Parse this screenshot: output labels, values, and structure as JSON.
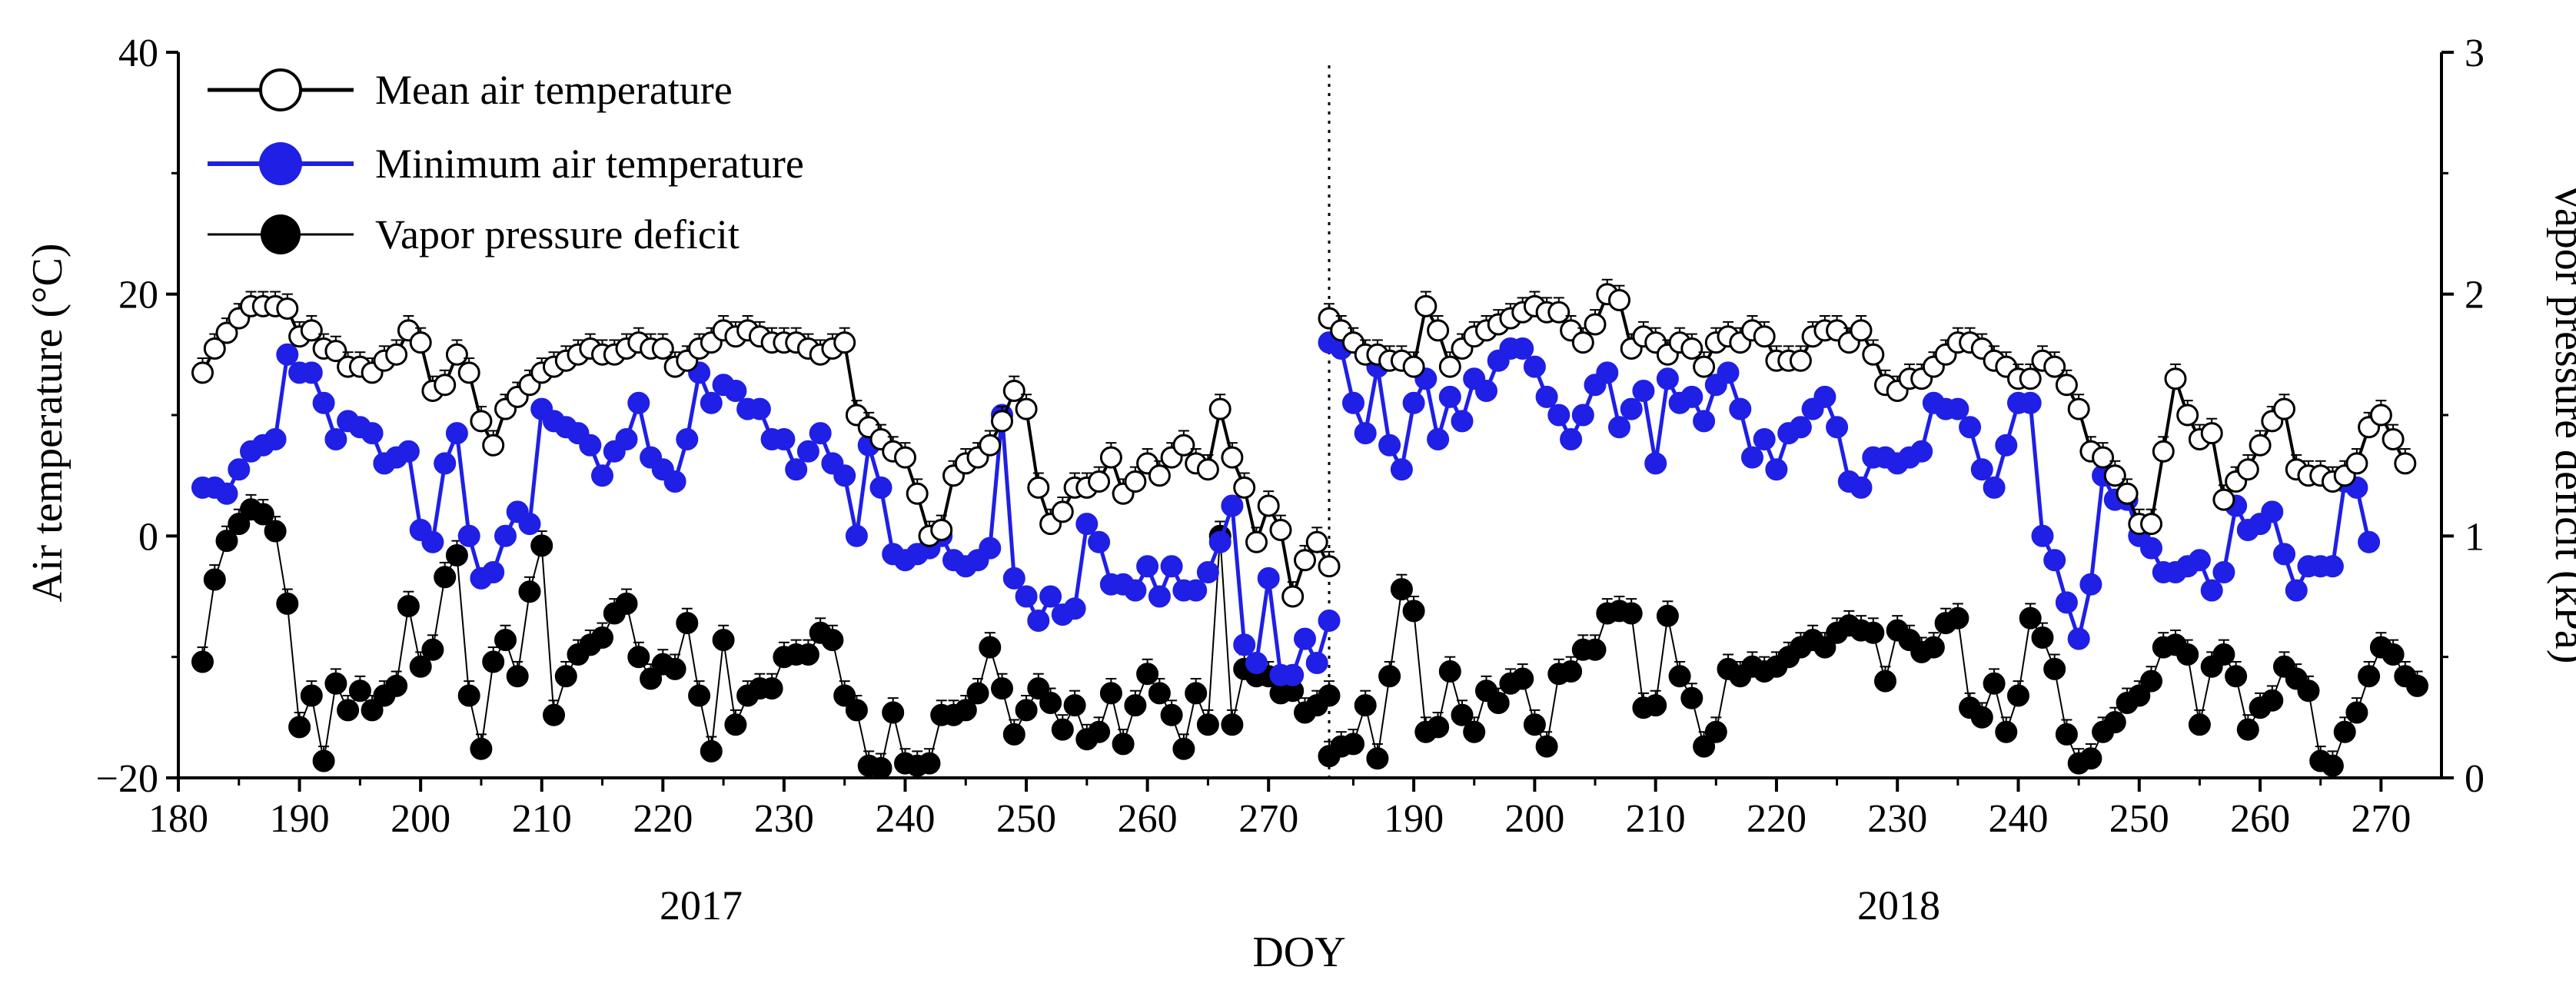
{
  "chart_data": {
    "type": "line",
    "title": "",
    "xlabel": "DOY",
    "ylabel": "Air temperature (°C)",
    "y2label": "Vapor pressure deficit (kPa)",
    "ylim": [
      -20,
      40
    ],
    "y2lim": [
      0,
      3
    ],
    "y_ticks": [
      "−20",
      "0",
      "20",
      "40"
    ],
    "y2_ticks": [
      "0",
      "1",
      "2",
      "3"
    ],
    "years": [
      "2017",
      "2018"
    ],
    "segments": [
      {
        "year": "2017",
        "doy_start": 180,
        "doy_end": 275,
        "x_ticks": [
          "180",
          "190",
          "200",
          "210",
          "220",
          "230",
          "240",
          "250",
          "260",
          "270"
        ]
      },
      {
        "year": "2018",
        "doy_start": 183,
        "doy_end": 275,
        "x_ticks": [
          "190",
          "200",
          "210",
          "220",
          "230",
          "240",
          "250",
          "260",
          "270"
        ]
      }
    ],
    "legend": [
      "Mean air temperature",
      "Minimum air temperature",
      "Vapor pressure deficit"
    ],
    "series": [
      {
        "name": "Mean air temperature",
        "axis": "left",
        "color": "#000000",
        "2017": {
          "doy_start": 182,
          "values": [
            13.5,
            15.5,
            16.8,
            18.0,
            19.0,
            19.0,
            19.0,
            18.8,
            16.5,
            17.0,
            15.5,
            15.3,
            14.0,
            14.0,
            13.5,
            14.5,
            15.0,
            17.0,
            16.0,
            12.0,
            12.5,
            15.0,
            13.5,
            9.5,
            7.5,
            10.5,
            11.5,
            12.5,
            13.5,
            14.0,
            14.5,
            15.0,
            15.5,
            15.0,
            15.0,
            15.5,
            16.0,
            15.5,
            15.5,
            14.0,
            14.5,
            15.5,
            16.0,
            17.0,
            16.5,
            17.0,
            16.5,
            16.0,
            16.0,
            16.0,
            15.5,
            15.0,
            15.5,
            16.0,
            10.0,
            9.0,
            8.0,
            7.0,
            6.5,
            3.5,
            0.0,
            0.5,
            5.0,
            6.0,
            6.5,
            7.5,
            9.5,
            12.0,
            10.5,
            4.0,
            1.0,
            2.0,
            4.0,
            4.0,
            4.5,
            6.5,
            3.5,
            4.5,
            6.0,
            5.0,
            6.5,
            7.5,
            6.0,
            5.5,
            10.5,
            6.5,
            4.0,
            -0.5,
            2.5,
            0.5,
            -5.0,
            -2.0,
            -0.5,
            -2.5
          ]
        },
        "2018": {
          "doy_start": 183,
          "values": [
            18.0,
            17.0,
            16.0,
            15.0,
            15.0,
            14.5,
            14.5,
            14.0,
            19.0,
            17.0,
            14.0,
            15.5,
            16.5,
            17.0,
            17.5,
            18.0,
            18.5,
            19.0,
            18.5,
            18.5,
            17.0,
            16.0,
            17.5,
            20.0,
            19.5,
            15.5,
            16.5,
            16.0,
            15.0,
            16.0,
            15.5,
            14.0,
            16.0,
            16.5,
            16.0,
            17.0,
            16.5,
            14.5,
            14.5,
            14.5,
            16.5,
            17.0,
            17.0,
            16.0,
            17.0,
            15.0,
            12.5,
            12.0,
            13.0,
            13.0,
            14.0,
            15.0,
            16.0,
            16.0,
            15.5,
            14.5,
            14.0,
            13.0,
            13.0,
            14.5,
            14.0,
            12.5,
            10.5,
            7.0,
            6.5,
            5.0,
            3.5,
            1.0,
            1.0,
            7.0,
            13.0,
            10.0,
            8.0,
            8.5,
            3.0,
            4.5,
            5.5,
            7.5,
            9.5,
            10.5,
            5.5,
            5.0,
            5.0,
            4.5,
            5.0,
            6.0,
            9.0,
            10.0,
            8.0,
            6.0
          ]
        }
      },
      {
        "name": "Minimum air temperature",
        "axis": "left",
        "color": "#1f1fe6",
        "2017": {
          "doy_start": 182,
          "values": [
            4.0,
            4.0,
            3.5,
            5.5,
            7.0,
            7.5,
            8.0,
            15.0,
            13.5,
            13.5,
            11.0,
            8.0,
            9.5,
            9.0,
            8.5,
            6.0,
            6.5,
            7.0,
            0.5,
            -0.5,
            6.0,
            8.5,
            0.0,
            -3.5,
            -3.0,
            0.0,
            2.0,
            1.0,
            10.5,
            9.5,
            9.0,
            8.5,
            7.5,
            5.0,
            7.0,
            8.0,
            11.0,
            6.5,
            5.5,
            4.5,
            8.0,
            13.5,
            11.0,
            12.5,
            12.0,
            10.5,
            10.5,
            8.0,
            8.0,
            5.5,
            7.0,
            8.5,
            6.0,
            5.0,
            0.0,
            7.5,
            4.0,
            -1.5,
            -2.0,
            -1.5,
            -1.0,
            0.0,
            -2.0,
            -2.5,
            -2.0,
            -1.0,
            10.0,
            -3.5,
            -5.0,
            -7.0,
            -5.0,
            -6.5,
            -6.0,
            1.0,
            -0.5,
            -4.0,
            -4.0,
            -4.5,
            -2.5,
            -5.0,
            -2.5,
            -4.5,
            -4.5,
            -3.0,
            -0.5,
            2.5,
            -9.0,
            -10.5,
            -3.5,
            -11.5,
            -11.5,
            -8.5,
            -10.5,
            -7.0
          ]
        },
        "2018": {
          "doy_start": 183,
          "values": [
            16.0,
            15.5,
            11.0,
            8.5,
            14.0,
            7.5,
            5.5,
            11.0,
            13.0,
            8.0,
            11.5,
            9.5,
            13.0,
            12.0,
            14.5,
            15.5,
            15.5,
            14.0,
            11.5,
            10.0,
            8.0,
            10.0,
            12.5,
            13.5,
            9.0,
            10.5,
            12.0,
            6.0,
            13.0,
            11.0,
            11.5,
            9.5,
            12.5,
            13.5,
            10.5,
            6.5,
            8.0,
            5.5,
            8.5,
            9.0,
            10.5,
            11.5,
            9.0,
            4.5,
            4.0,
            6.5,
            6.5,
            6.0,
            6.5,
            7.0,
            11.0,
            10.5,
            10.5,
            9.0,
            5.5,
            4.0,
            7.5,
            11.0,
            11.0,
            0.0,
            -2.0,
            -5.5,
            -8.5,
            -4.0,
            5.0,
            3.0,
            3.0,
            0.0,
            -1.0,
            -3.0,
            -3.0,
            -2.5,
            -2.0,
            -4.5,
            -3.0,
            2.5,
            0.5,
            1.0,
            2.0,
            -1.5,
            -4.5,
            -2.5,
            -2.5,
            -2.5,
            4.5,
            4.0,
            -0.5
          ]
        }
      },
      {
        "name": "Vapor pressure deficit",
        "axis": "right",
        "color": "#000000",
        "2017": {
          "doy_start": 182,
          "values": [
            0.48,
            0.82,
            0.98,
            1.05,
            1.11,
            1.09,
            1.02,
            0.72,
            0.21,
            0.34,
            0.07,
            0.39,
            0.28,
            0.36,
            0.28,
            0.34,
            0.38,
            0.71,
            0.46,
            0.53,
            0.83,
            0.92,
            0.34,
            0.12,
            0.48,
            0.57,
            0.42,
            0.77,
            0.96,
            0.26,
            0.42,
            0.51,
            0.55,
            0.58,
            0.68,
            0.72,
            0.5,
            0.41,
            0.47,
            0.45,
            0.64,
            0.34,
            0.11,
            0.57,
            0.22,
            0.34,
            0.37,
            0.37,
            0.5,
            0.51,
            0.51,
            0.6,
            0.57,
            0.34,
            0.28,
            0.05,
            0.04,
            0.27,
            0.06,
            0.05,
            0.06,
            0.26,
            0.26,
            0.28,
            0.35,
            0.54,
            0.37,
            0.18,
            0.28,
            0.37,
            0.31,
            0.2,
            0.3,
            0.16,
            0.19,
            0.35,
            0.14,
            0.3,
            0.43,
            0.35,
            0.26,
            0.12,
            0.35,
            0.22,
            1.0,
            0.22,
            0.45,
            0.42,
            0.42,
            0.35,
            0.36,
            0.27,
            0.3,
            0.34
          ]
        },
        "2018": {
          "doy_start": 183,
          "values": [
            0.09,
            0.13,
            0.14,
            0.3,
            0.08,
            0.42,
            0.78,
            0.69,
            0.19,
            0.21,
            0.44,
            0.26,
            0.19,
            0.36,
            0.31,
            0.39,
            0.41,
            0.22,
            0.13,
            0.43,
            0.44,
            0.53,
            0.53,
            0.68,
            0.69,
            0.68,
            0.29,
            0.3,
            0.67,
            0.42,
            0.33,
            0.13,
            0.19,
            0.45,
            0.42,
            0.46,
            0.44,
            0.46,
            0.5,
            0.54,
            0.57,
            0.54,
            0.6,
            0.63,
            0.61,
            0.6,
            0.4,
            0.61,
            0.57,
            0.52,
            0.54,
            0.64,
            0.66,
            0.29,
            0.25,
            0.39,
            0.19,
            0.34,
            0.66,
            0.58,
            0.45,
            0.18,
            0.06,
            0.08,
            0.19,
            0.23,
            0.31,
            0.34,
            0.4,
            0.54,
            0.55,
            0.51,
            0.22,
            0.46,
            0.51,
            0.42,
            0.2,
            0.29,
            0.32,
            0.46,
            0.41,
            0.36,
            0.07,
            0.05,
            0.19,
            0.27,
            0.42,
            0.54,
            0.51,
            0.42,
            0.38
          ]
        }
      }
    ]
  }
}
